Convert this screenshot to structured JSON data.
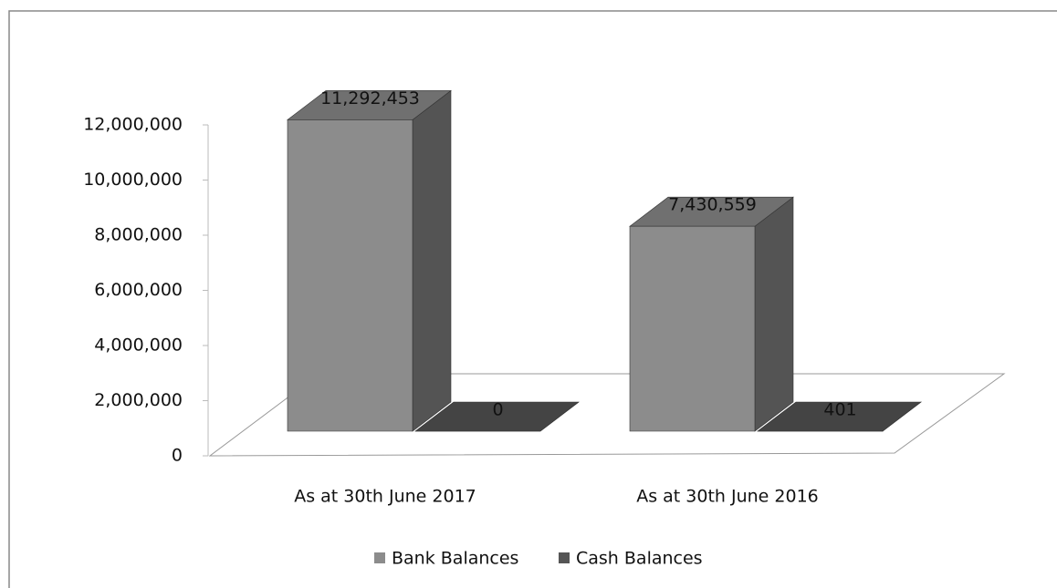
{
  "chart_data": {
    "type": "bar3d",
    "categories": [
      "As at 30th June 2017",
      "As at 30th June 2016"
    ],
    "series": [
      {
        "name": "Bank Balances",
        "color": "#8c8c8c",
        "values": [
          11292453,
          7430559
        ],
        "value_labels": [
          "11,292,453",
          "7,430,559"
        ]
      },
      {
        "name": "Cash Balances",
        "color": "#555555",
        "values": [
          0,
          401
        ],
        "value_labels": [
          "0",
          "401"
        ]
      }
    ],
    "ylim": [
      0,
      12000000
    ],
    "yticks": [
      0,
      {
        "value": 2000000,
        "label": "2,000,000"
      },
      {
        "value": 4000000,
        "label": "4,000,000"
      },
      {
        "value": 6000000,
        "label": "6,000,000"
      },
      {
        "value": 8000000,
        "label": "8,000,000"
      },
      {
        "value": 10000000,
        "label": "10,000,000"
      },
      {
        "value": 12000000,
        "label": "12,000,000"
      }
    ],
    "legend": "bottom"
  }
}
